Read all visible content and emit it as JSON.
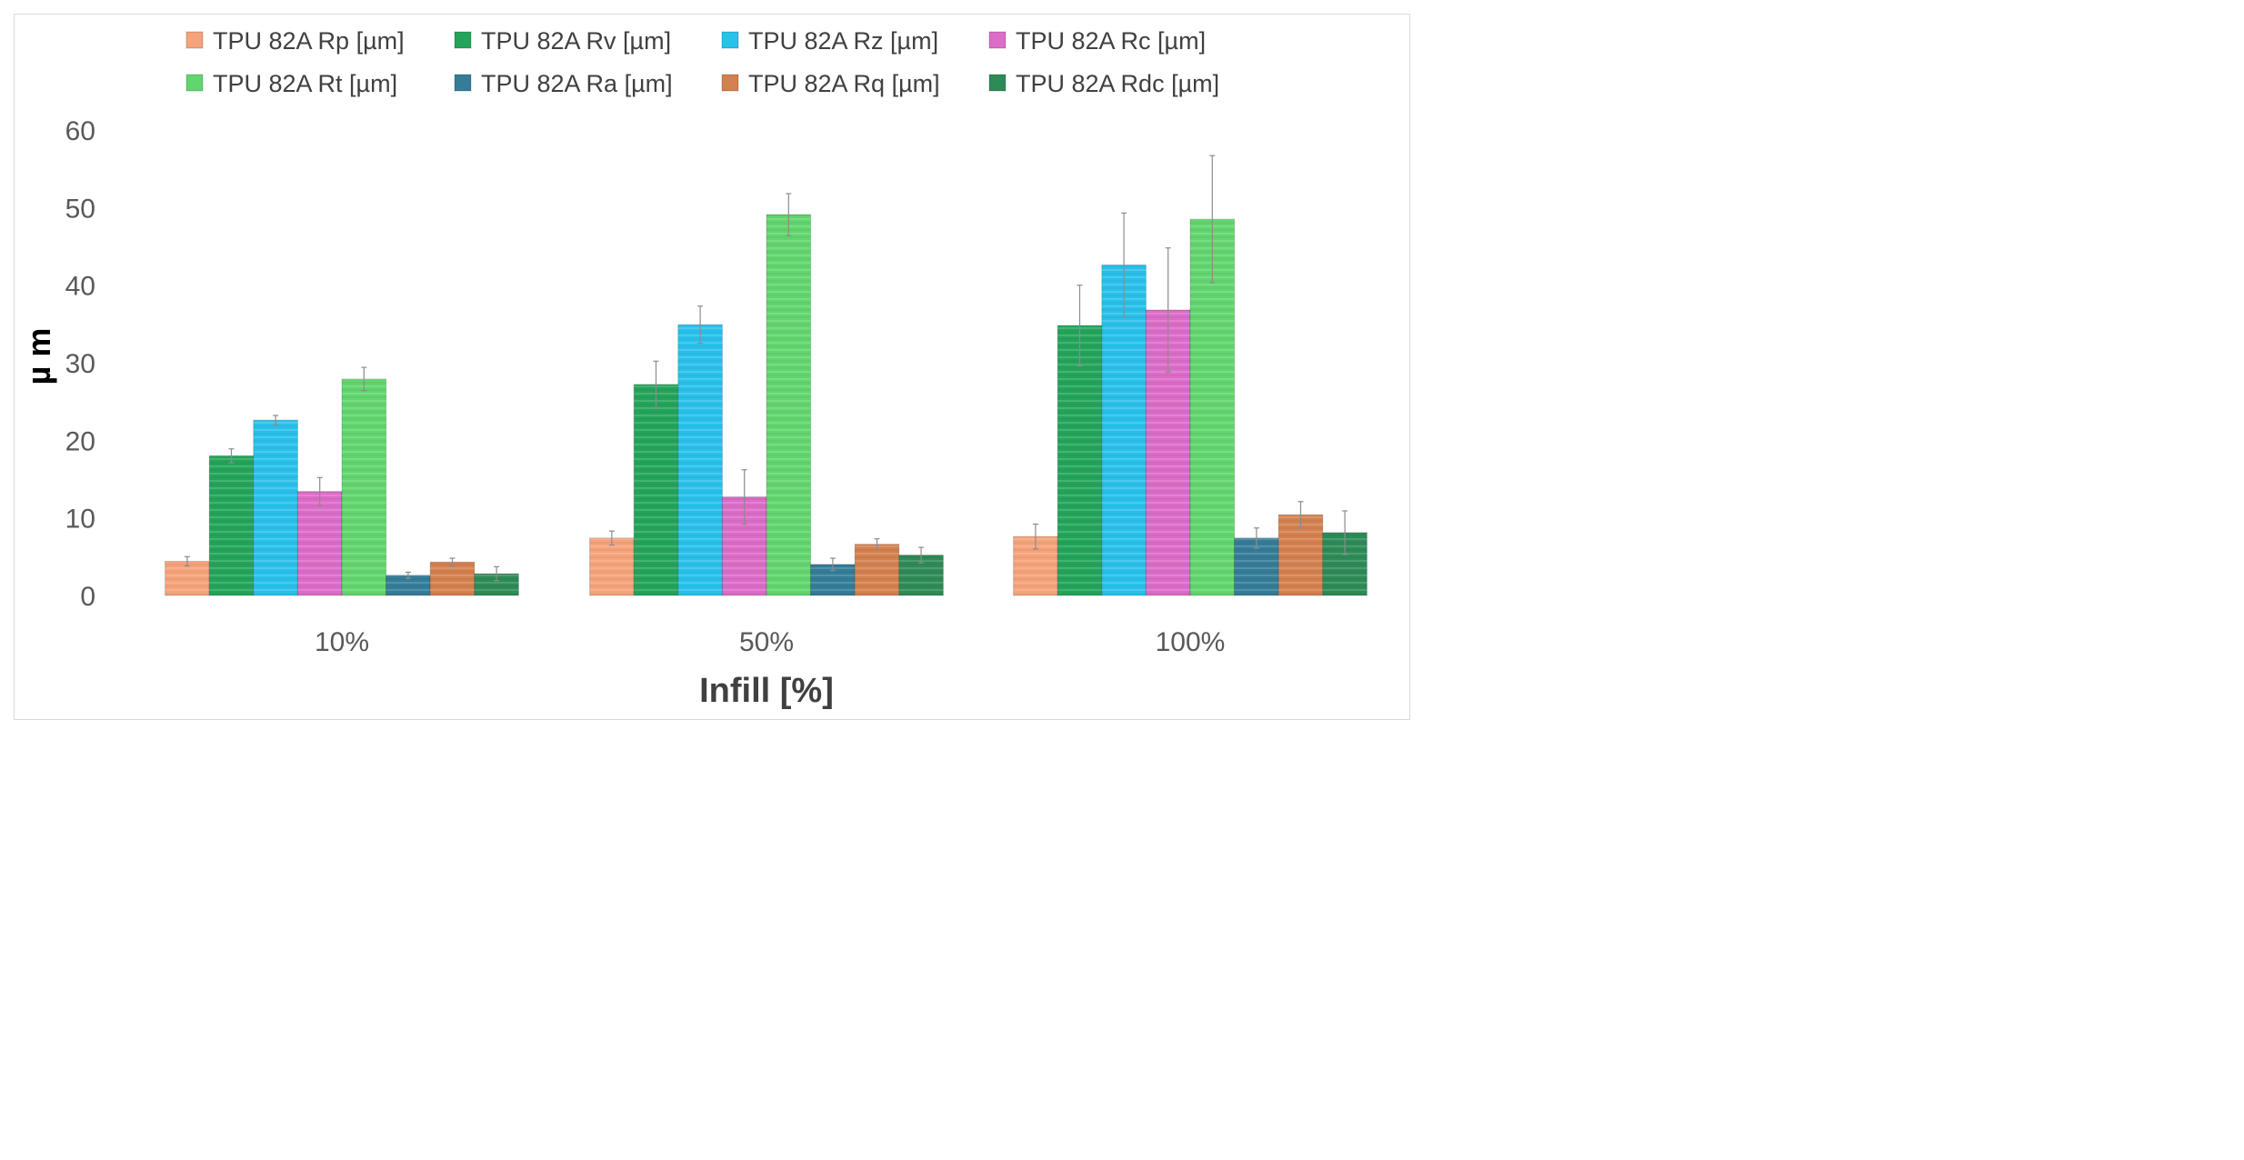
{
  "chart_data": {
    "type": "bar",
    "title": "",
    "xlabel": "Infill [%]",
    "ylabel": "µ m",
    "ylim": [
      0,
      60
    ],
    "yticks": [
      0,
      10,
      20,
      30,
      40,
      50,
      60
    ],
    "grid": false,
    "legend_position": "top",
    "categories": [
      "10%",
      "50%",
      "100%"
    ],
    "series": [
      {
        "name": "TPU 82A  Rp  [µm]",
        "color": "#f5a37a",
        "values": [
          4.4,
          7.4,
          7.6
        ],
        "errors": [
          0.6,
          0.9,
          1.6
        ]
      },
      {
        "name": "TPU 82A  Rv  [µm]",
        "color": "#23a45a",
        "values": [
          18.0,
          27.2,
          34.8
        ],
        "errors": [
          0.9,
          3.0,
          5.2
        ]
      },
      {
        "name": "TPU 82A  Rz  [µm]",
        "color": "#29c0ea",
        "values": [
          22.6,
          34.9,
          42.6
        ],
        "errors": [
          0.6,
          2.4,
          6.7
        ]
      },
      {
        "name": "TPU 82A  Rc  [µm]",
        "color": "#dc6cc7",
        "values": [
          13.4,
          12.7,
          36.8
        ],
        "errors": [
          1.8,
          3.5,
          8.0
        ]
      },
      {
        "name": "TPU 82A  Rt  [µm]",
        "color": "#62d56e",
        "values": [
          27.9,
          49.1,
          48.5
        ],
        "errors": [
          1.5,
          2.7,
          8.2
        ]
      },
      {
        "name": "TPU 82A  Ra  [µm]",
        "color": "#357c98",
        "values": [
          2.6,
          4.0,
          7.4
        ],
        "errors": [
          0.4,
          0.8,
          1.3
        ]
      },
      {
        "name": "TPU 82A  Rq  [µm]",
        "color": "#d4804f",
        "values": [
          4.3,
          6.6,
          10.4
        ],
        "errors": [
          0.5,
          0.7,
          1.7
        ]
      },
      {
        "name": "TPU 82A  Rdc  [µm]",
        "color": "#2e8b57",
        "values": [
          2.8,
          5.2,
          8.1
        ],
        "errors": [
          0.9,
          1.0,
          2.8
        ]
      }
    ]
  }
}
